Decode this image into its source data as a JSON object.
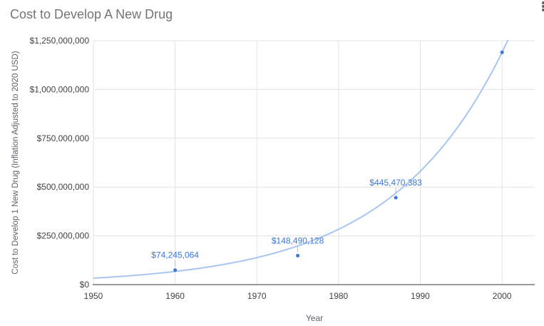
{
  "chart": {
    "title": "Cost to Develop A New Drug"
  },
  "icons": {
    "more_options": "kebab-menu"
  },
  "chart_data": {
    "type": "scatter",
    "title": "Cost to Develop A New Drug",
    "xlabel": "Year",
    "ylabel": "Cost to Develop 1 New Drug (Inflation Adjusted to 2020 USD)",
    "xlim": [
      1950,
      2004
    ],
    "ylim": [
      0,
      1250000000
    ],
    "grid": true,
    "legend": "none",
    "x_ticks": [
      {
        "value": 1950,
        "label": "1950"
      },
      {
        "value": 1960,
        "label": "1960"
      },
      {
        "value": 1970,
        "label": "1970"
      },
      {
        "value": 1980,
        "label": "1980"
      },
      {
        "value": 1990,
        "label": "1990"
      },
      {
        "value": 2000,
        "label": "2000"
      }
    ],
    "y_ticks": [
      {
        "value": 0,
        "label": "$0"
      },
      {
        "value": 250000000,
        "label": "$250,000,000"
      },
      {
        "value": 500000000,
        "label": "$500,000,000"
      },
      {
        "value": 750000000,
        "label": "$750,000,000"
      },
      {
        "value": 1000000000,
        "label": "$1,000,000,000"
      },
      {
        "value": 1250000000,
        "label": "$1,250,000,000"
      }
    ],
    "series": [
      {
        "name": "Cost to Develop 1 New Drug",
        "point_color": "#3c78d8",
        "label_color": "#3c78d8",
        "points": [
          {
            "x": 1960,
            "y": 74245064,
            "label": "$74,245,064"
          },
          {
            "x": 1975,
            "y": 148490128,
            "label": "$148,490,128"
          },
          {
            "x": 1987,
            "y": 445470383,
            "label": "$445,470,383"
          },
          {
            "x": 2000,
            "y": 1190000000,
            "label": ""
          }
        ]
      }
    ],
    "trendline": {
      "type": "exponential",
      "color": "#a9c5f2",
      "value_at_1950": 33000000,
      "value_at_2000": 1190000000
    },
    "colors": {
      "grid": "#e3e3e3",
      "axis_line": "#333333",
      "tick_text": "#424242",
      "axis_title_text": "#5f6368",
      "chart_title_text": "#757575",
      "leader_line": "#bdbdbd"
    }
  }
}
